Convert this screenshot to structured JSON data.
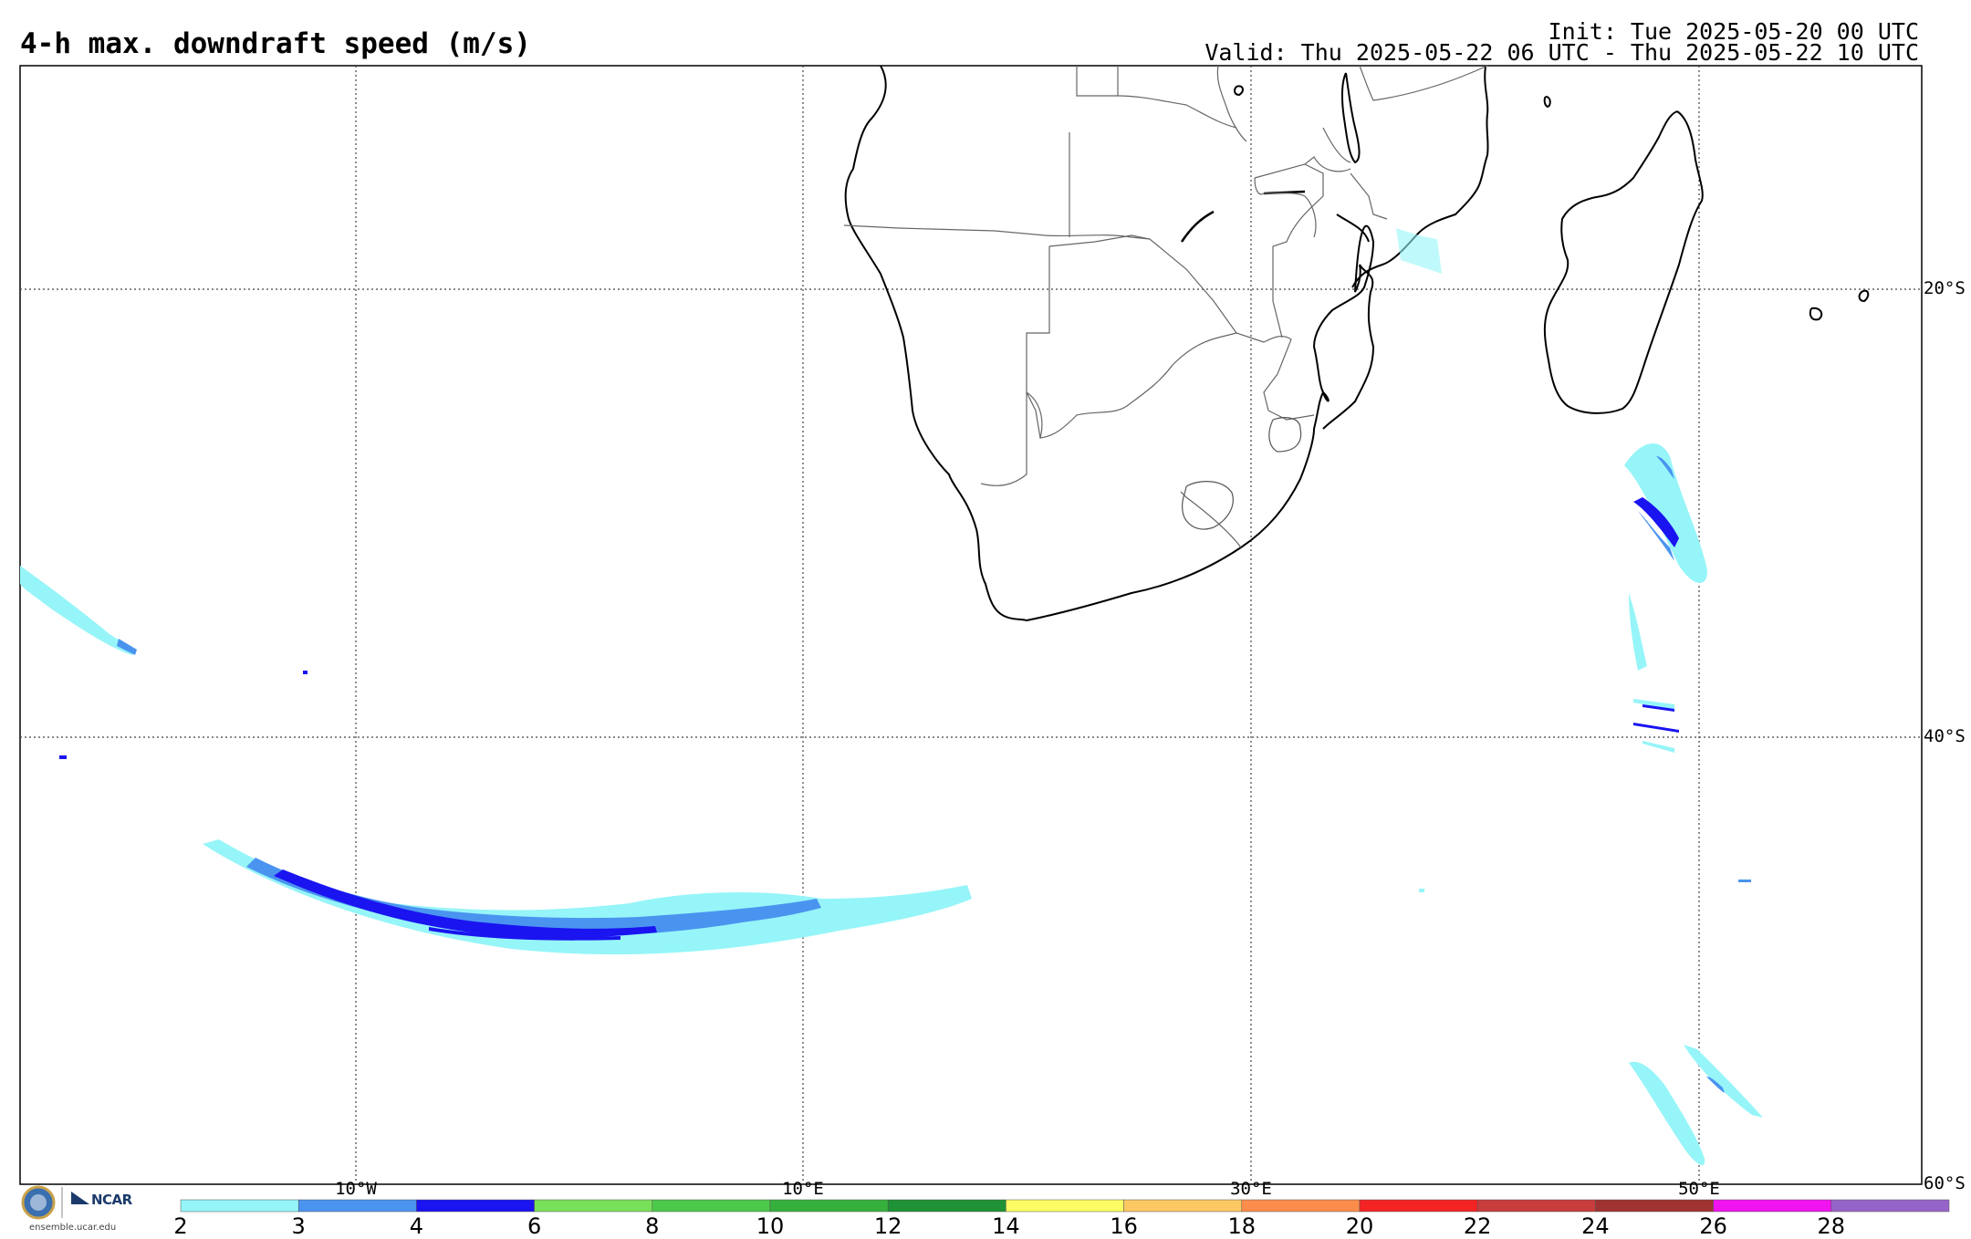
{
  "header": {
    "title": "4-h max. downdraft speed (m/s)",
    "init": "Init: Tue 2025-05-20 00 UTC",
    "valid": "Valid: Thu 2025-05-22 06 UTC - Thu 2025-05-22 10 UTC"
  },
  "map": {
    "latitude_labels": [
      "20°S",
      "40°S",
      "60°S"
    ],
    "longitude_labels": [
      "10°W",
      "10°E",
      "30°E",
      "50°E"
    ],
    "land_color": "#ffffff",
    "border_color": "#555555",
    "coast_color": "#000000"
  },
  "colorbar": {
    "ticks": [
      "2",
      "3",
      "4",
      "6",
      "8",
      "10",
      "12",
      "14",
      "16",
      "18",
      "20",
      "22",
      "24",
      "26",
      "28"
    ],
    "colors": [
      "#96f5f8",
      "#4a94f0",
      "#1a14f0",
      "#78e05a",
      "#4cc84a",
      "#36b03c",
      "#1e9234",
      "#fcfc64",
      "#fcc864",
      "#fc8c4c",
      "#f42424",
      "#c83c3c",
      "#a03232",
      "#f014f0",
      "#9664c8"
    ]
  },
  "logo": {
    "org": "NCAR",
    "url": "ensemble.ucar.edu"
  }
}
